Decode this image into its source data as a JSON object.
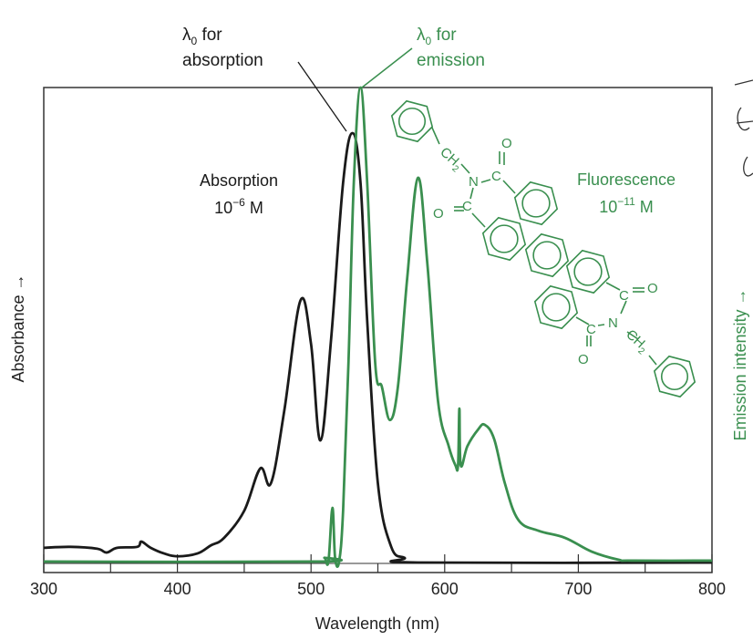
{
  "chart_data": {
    "type": "line",
    "xlabel": "Wavelength (nm)",
    "ylabel_left": "Absorbance →",
    "ylabel_right": "Emission intensity →",
    "xlim": [
      300,
      800
    ],
    "ylim": [
      0,
      1
    ],
    "x_ticks": [
      "300",
      "400",
      "500",
      "600",
      "700",
      "800"
    ],
    "grid": false,
    "colors": {
      "absorption": "#1a1a1a",
      "emission": "#3a8f4f"
    },
    "annotations": {
      "abs_lambda0": [
        "λ",
        "0",
        " for",
        "absorption"
      ],
      "em_lambda0": [
        "λ",
        "0",
        " for",
        "emission"
      ],
      "absorption_label": [
        "Absorption",
        "10",
        "−6",
        " M"
      ],
      "fluorescence_label": [
        "Fluorescence",
        "10",
        "−11",
        " M"
      ]
    },
    "series": [
      {
        "name": "Absorption",
        "points": [
          [
            300,
            0.031
          ],
          [
            320,
            0.033
          ],
          [
            340,
            0.029
          ],
          [
            347,
            0.021
          ],
          [
            355,
            0.031
          ],
          [
            370,
            0.033
          ],
          [
            373,
            0.044
          ],
          [
            380,
            0.031
          ],
          [
            390,
            0.019
          ],
          [
            400,
            0.013
          ],
          [
            415,
            0.019
          ],
          [
            425,
            0.036
          ],
          [
            435,
            0.052
          ],
          [
            450,
            0.109
          ],
          [
            462,
            0.198
          ],
          [
            470,
            0.167
          ],
          [
            480,
            0.32
          ],
          [
            492,
            0.551
          ],
          [
            500,
            0.46
          ],
          [
            507,
            0.257
          ],
          [
            515,
            0.47
          ],
          [
            524,
            0.8
          ],
          [
            531,
            0.904
          ],
          [
            537,
            0.8
          ],
          [
            542,
            0.51
          ],
          [
            550,
            0.167
          ],
          [
            560,
            0.033
          ],
          [
            570,
            0.01
          ],
          [
            580,
            0.0
          ],
          [
            800,
            0.0
          ]
        ]
      },
      {
        "name": "Fluorescence",
        "points": [
          [
            300,
            0.002
          ],
          [
            505,
            0.002
          ],
          [
            510,
            0.01
          ],
          [
            513,
            0.002
          ],
          [
            516,
            0.115
          ],
          [
            518,
            0.01
          ],
          [
            521,
            0.002
          ],
          [
            524,
            0.11
          ],
          [
            528,
            0.42
          ],
          [
            532,
            0.8
          ],
          [
            537,
            1.0
          ],
          [
            542,
            0.8
          ],
          [
            548,
            0.42
          ],
          [
            553,
            0.37
          ],
          [
            559,
            0.3
          ],
          [
            565,
            0.37
          ],
          [
            572,
            0.6
          ],
          [
            580,
            0.81
          ],
          [
            587,
            0.63
          ],
          [
            595,
            0.34
          ],
          [
            603,
            0.245
          ],
          [
            608,
            0.205
          ],
          [
            610,
            0.205
          ],
          [
            611,
            0.324
          ],
          [
            612,
            0.205
          ],
          [
            617,
            0.245
          ],
          [
            625,
            0.28
          ],
          [
            630,
            0.29
          ],
          [
            637,
            0.26
          ],
          [
            645,
            0.167
          ],
          [
            655,
            0.09
          ],
          [
            670,
            0.067
          ],
          [
            690,
            0.052
          ],
          [
            710,
            0.023
          ],
          [
            730,
            0.006
          ],
          [
            740,
            0.004
          ],
          [
            800,
            0.004
          ]
        ]
      }
    ],
    "structure_labels": {
      "ch": "CH",
      "sub2": "2",
      "n": "N",
      "c": "C",
      "o": "O"
    }
  }
}
